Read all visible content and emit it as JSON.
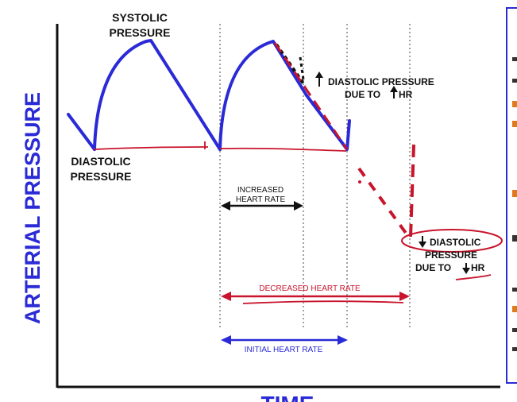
{
  "labels": {
    "y_axis": "ARTERIAL PRESSURE",
    "x_axis": "TIME",
    "systolic_line1": "SYSTOLIC",
    "systolic_line2": "PRESSURE",
    "diastolic_line1": "DIASTOLIC",
    "diastolic_line2": "PRESSURE",
    "increased_line1": "INCREASED",
    "increased_line2": "HEART RATE",
    "up_diastolic_line1": "DIASTOLIC PRESSURE",
    "up_diastolic_line2_a": "DUE TO",
    "up_diastolic_line2_b": "HR",
    "down_diastolic_line1": "DIASTOLIC",
    "down_diastolic_line2": "PRESSURE",
    "down_diastolic_line3_a": "DUE TO",
    "down_diastolic_line3_b": "HR",
    "decreased": "DECREASED  HEART  RATE",
    "initial": "INITIAL  HEART  RATE"
  },
  "colors": {
    "waveform": "#2a2ad6",
    "annotation": "#c8142c",
    "axis": "#111111",
    "side_panel_border": "#2a2ad6",
    "side_panel_accent": "#e07a1e"
  }
}
